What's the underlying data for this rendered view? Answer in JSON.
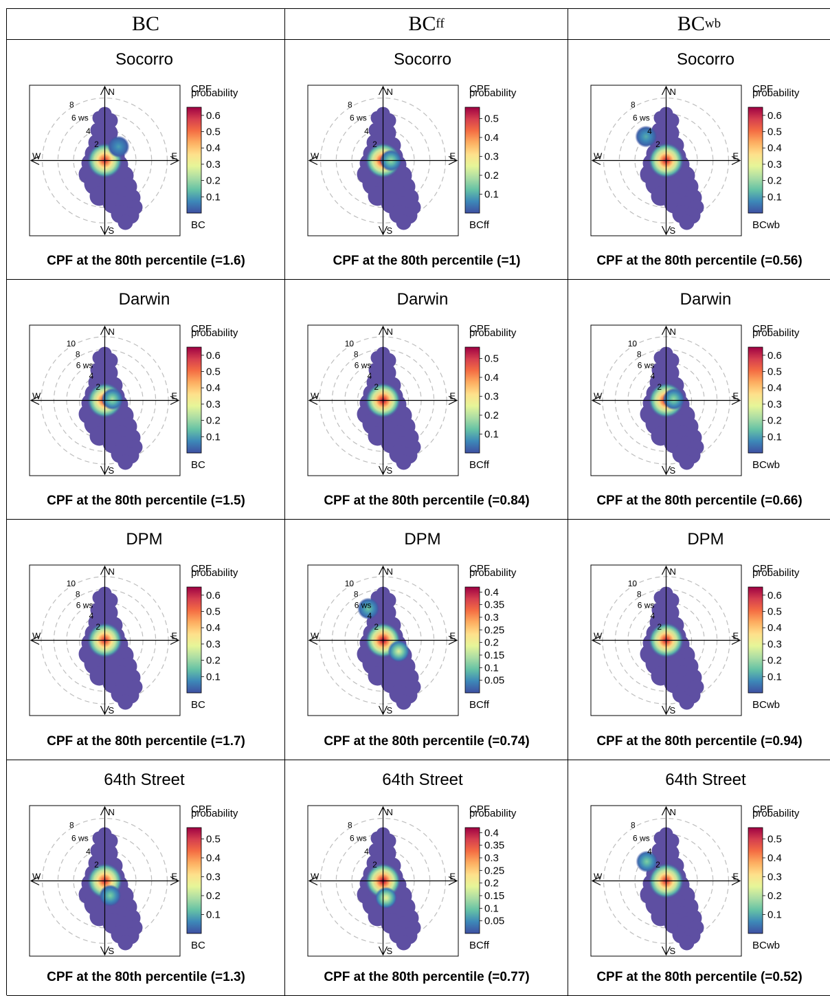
{
  "columns": [
    {
      "main": "BC",
      "sub": ""
    },
    {
      "main": "BC",
      "sub": "ff"
    },
    {
      "main": "BC",
      "sub": "wb"
    }
  ],
  "chart_data": [
    {
      "type": "heatmap",
      "title": "Socorro",
      "caption": "CPF at the 80th percentile (=1.6)",
      "pollutant": "BC",
      "legend_title": [
        "CPF",
        "probability"
      ],
      "legend_ticks": [
        "0.1",
        "0.2",
        "0.3",
        "0.4",
        "0.5",
        "0.6"
      ],
      "cmax": 0.65,
      "ring_labels": [
        "2",
        "4",
        "6 ws",
        "8"
      ],
      "compass": [
        "N",
        "E",
        "S",
        "W"
      ],
      "hotspots": [
        {
          "ws": 0,
          "dir": 0,
          "p": 0.6
        },
        {
          "ws": 2.5,
          "dir": 45,
          "p": 0.1
        }
      ]
    },
    {
      "type": "heatmap",
      "title": "Socorro",
      "caption": "CPF at the 80th percentile (=1)",
      "pollutant": "BCff",
      "legend_title": [
        "CPF",
        "probability"
      ],
      "legend_ticks": [
        "0.1",
        "0.2",
        "0.3",
        "0.4",
        "0.5"
      ],
      "cmax": 0.56,
      "ring_labels": [
        "2",
        "4",
        "6 ws",
        "8"
      ],
      "compass": [
        "N",
        "E",
        "S",
        "W"
      ],
      "hotspots": [
        {
          "ws": 0,
          "dir": 0,
          "p": 0.55
        },
        {
          "ws": 1,
          "dir": 90,
          "p": 0.18
        }
      ]
    },
    {
      "type": "heatmap",
      "title": "Socorro",
      "caption": "CPF at the 80th percentile (=0.56)",
      "pollutant": "BCwb",
      "legend_title": [
        "CPF",
        "probability"
      ],
      "legend_ticks": [
        "0.1",
        "0.2",
        "0.3",
        "0.4",
        "0.5",
        "0.6"
      ],
      "cmax": 0.65,
      "ring_labels": [
        "2",
        "4",
        "6 ws",
        "8"
      ],
      "compass": [
        "N",
        "E",
        "S",
        "W"
      ],
      "hotspots": [
        {
          "ws": 0,
          "dir": 0,
          "p": 0.62
        },
        {
          "ws": 4,
          "dir": 320,
          "p": 0.12
        }
      ]
    },
    {
      "type": "heatmap",
      "title": "Darwin",
      "caption": "CPF at the 80th percentile (=1.5)",
      "pollutant": "BC",
      "legend_title": [
        "CPF",
        "probability"
      ],
      "legend_ticks": [
        "0.1",
        "0.2",
        "0.3",
        "0.4",
        "0.5",
        "0.6"
      ],
      "cmax": 0.65,
      "ring_labels": [
        "2",
        "4",
        "6 ws",
        "8",
        "10"
      ],
      "compass": [
        "N",
        "E",
        "S",
        "W"
      ],
      "hotspots": [
        {
          "ws": 0,
          "dir": 0,
          "p": 0.6
        },
        {
          "ws": 1.2,
          "dir": 80,
          "p": 0.22
        }
      ]
    },
    {
      "type": "heatmap",
      "title": "Darwin",
      "caption": "CPF at the 80th percentile (=0.84)",
      "pollutant": "BCff",
      "legend_title": [
        "CPF",
        "probability"
      ],
      "legend_ticks": [
        "0.1",
        "0.2",
        "0.3",
        "0.4",
        "0.5"
      ],
      "cmax": 0.56,
      "ring_labels": [
        "2",
        "4",
        "6 ws",
        "8",
        "10"
      ],
      "compass": [
        "N",
        "E",
        "S",
        "W"
      ],
      "hotspots": [
        {
          "ws": 0,
          "dir": 0,
          "p": 0.55
        }
      ]
    },
    {
      "type": "heatmap",
      "title": "Darwin",
      "caption": "CPF at the 80th percentile (=0.66)",
      "pollutant": "BCwb",
      "legend_title": [
        "CPF",
        "probability"
      ],
      "legend_ticks": [
        "0.1",
        "0.2",
        "0.3",
        "0.4",
        "0.5",
        "0.6"
      ],
      "cmax": 0.65,
      "ring_labels": [
        "2",
        "4",
        "6 ws",
        "8",
        "10"
      ],
      "compass": [
        "N",
        "E",
        "S",
        "W"
      ],
      "hotspots": [
        {
          "ws": 0,
          "dir": 0,
          "p": 0.62
        },
        {
          "ws": 1.2,
          "dir": 80,
          "p": 0.2
        }
      ]
    },
    {
      "type": "heatmap",
      "title": "DPM",
      "caption": "CPF at the 80th percentile (=1.7)",
      "pollutant": "BC",
      "legend_title": [
        "CPF",
        "probability"
      ],
      "legend_ticks": [
        "0.1",
        "0.2",
        "0.3",
        "0.4",
        "0.5",
        "0.6"
      ],
      "cmax": 0.65,
      "ring_labels": [
        "2",
        "4",
        "6 ws",
        "8",
        "10"
      ],
      "compass": [
        "N",
        "E",
        "S",
        "W"
      ],
      "hotspots": [
        {
          "ws": 0,
          "dir": 0,
          "p": 0.6
        }
      ]
    },
    {
      "type": "heatmap",
      "title": "DPM",
      "caption": "CPF at the 80th percentile (=0.74)",
      "pollutant": "BCff",
      "legend_title": [
        "CPF",
        "probability"
      ],
      "legend_ticks": [
        "0.05",
        "0.1",
        "0.15",
        "0.2",
        "0.25",
        "0.3",
        "0.35",
        "0.4"
      ],
      "cmax": 0.42,
      "ring_labels": [
        "2",
        "4",
        "6 ws",
        "8",
        "10"
      ],
      "compass": [
        "N",
        "E",
        "S",
        "W"
      ],
      "hotspots": [
        {
          "ws": 0,
          "dir": 0,
          "p": 0.42
        },
        {
          "ws": 3,
          "dir": 125,
          "p": 0.18
        },
        {
          "ws": 5.5,
          "dir": 335,
          "p": 0.1
        }
      ]
    },
    {
      "type": "heatmap",
      "title": "DPM",
      "caption": "CPF at the 80th percentile (=0.94)",
      "pollutant": "BCwb",
      "legend_title": [
        "CPF",
        "probability"
      ],
      "legend_ticks": [
        "0.1",
        "0.2",
        "0.3",
        "0.4",
        "0.5",
        "0.6"
      ],
      "cmax": 0.65,
      "ring_labels": [
        "2",
        "4",
        "6 ws",
        "8",
        "10"
      ],
      "compass": [
        "N",
        "E",
        "S",
        "W"
      ],
      "hotspots": [
        {
          "ws": 0,
          "dir": 0,
          "p": 0.62
        }
      ]
    },
    {
      "type": "heatmap",
      "title": "64th Street",
      "caption": "CPF at the 80th percentile (=1.3)",
      "pollutant": "BC",
      "legend_title": [
        "CPF",
        "probability"
      ],
      "legend_ticks": [
        "0.1",
        "0.2",
        "0.3",
        "0.4",
        "0.5"
      ],
      "cmax": 0.56,
      "ring_labels": [
        "2",
        "4",
        "6 ws",
        "8"
      ],
      "compass": [
        "N",
        "E",
        "S",
        "W"
      ],
      "hotspots": [
        {
          "ws": 0,
          "dir": 0,
          "p": 0.52
        },
        {
          "ws": 2,
          "dir": 160,
          "p": 0.15
        }
      ]
    },
    {
      "type": "heatmap",
      "title": "64th Street",
      "caption": "CPF at the 80th percentile (=0.77)",
      "pollutant": "BCff",
      "legend_title": [
        "CPF",
        "probability"
      ],
      "legend_ticks": [
        "0.05",
        "0.1",
        "0.15",
        "0.2",
        "0.25",
        "0.3",
        "0.35",
        "0.4"
      ],
      "cmax": 0.42,
      "ring_labels": [
        "2",
        "4",
        "6 ws",
        "8"
      ],
      "compass": [
        "N",
        "E",
        "S",
        "W"
      ],
      "hotspots": [
        {
          "ws": 0,
          "dir": 0,
          "p": 0.42
        },
        {
          "ws": 2.2,
          "dir": 170,
          "p": 0.2
        }
      ]
    },
    {
      "type": "heatmap",
      "title": "64th Street",
      "caption": "CPF at the 80th percentile (=0.52)",
      "pollutant": "BCwb",
      "legend_title": [
        "CPF",
        "probability"
      ],
      "legend_ticks": [
        "0.1",
        "0.2",
        "0.3",
        "0.4",
        "0.5"
      ],
      "cmax": 0.56,
      "ring_labels": [
        "2",
        "4",
        "6 ws",
        "8"
      ],
      "compass": [
        "N",
        "E",
        "S",
        "W"
      ],
      "hotspots": [
        {
          "ws": 0,
          "dir": 0,
          "p": 0.52
        },
        {
          "ws": 3.5,
          "dir": 315,
          "p": 0.15
        }
      ]
    }
  ]
}
